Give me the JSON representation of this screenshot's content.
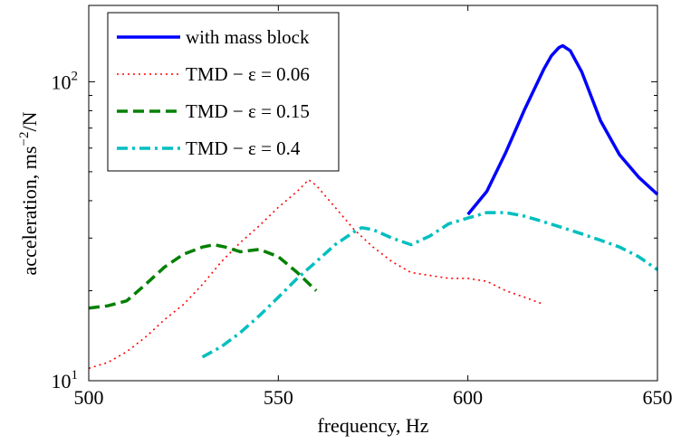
{
  "chart_data": {
    "type": "line",
    "xlabel": "frequency, Hz",
    "ylabel_main": "acceleration, ms",
    "ylabel_sup": "−2",
    "ylabel_tail": "/N",
    "xlim": [
      500,
      650
    ],
    "ylim": [
      10,
      180
    ],
    "yscale": "log",
    "grid": false,
    "legend_position": "top-left",
    "x_ticks": [
      {
        "value": 500,
        "label": "500"
      },
      {
        "value": 550,
        "label": "550"
      },
      {
        "value": 600,
        "label": "600"
      },
      {
        "value": 650,
        "label": "650"
      }
    ],
    "y_ticks": [
      {
        "value": 10,
        "base": "10",
        "exp": "1"
      },
      {
        "value": 100,
        "base": "10",
        "exp": "2"
      }
    ],
    "series": [
      {
        "name": "with mass block",
        "color": "#0000ff",
        "style": "solid",
        "x": [
          600,
          605,
          610,
          615,
          620,
          622,
          624,
          625,
          627,
          630,
          635,
          640,
          645,
          650
        ],
        "y": [
          36,
          43,
          58,
          81,
          110,
          122,
          130,
          132,
          127,
          108,
          74,
          57,
          48,
          42
        ]
      },
      {
        "name": "TMD − ε = 0.06",
        "color": "#ff0000",
        "style": "dotted",
        "x": [
          500,
          505,
          510,
          515,
          520,
          525,
          530,
          535,
          540,
          545,
          550,
          555,
          558,
          560,
          565,
          570,
          575,
          580,
          585,
          590,
          595,
          600,
          605,
          610,
          615,
          620
        ],
        "y": [
          11,
          11.5,
          12.5,
          14,
          16,
          18,
          21,
          25,
          29,
          33,
          38,
          43,
          47,
          45,
          38,
          32,
          28,
          25,
          23,
          22.5,
          22,
          22,
          21.5,
          20,
          19,
          18
        ]
      },
      {
        "name": "TMD − ε = 0.15",
        "color": "#008000",
        "style": "dashed",
        "x": [
          500,
          505,
          510,
          515,
          520,
          525,
          530,
          533,
          536,
          540,
          545,
          550,
          555,
          560
        ],
        "y": [
          17.5,
          17.8,
          18.5,
          21,
          24,
          26.5,
          28,
          28.5,
          28,
          27,
          27.5,
          26,
          23,
          20
        ]
      },
      {
        "name": "TMD − ε = 0.4",
        "color": "#00bfbf",
        "style": "dashdot",
        "x": [
          530,
          535,
          540,
          545,
          550,
          555,
          560,
          565,
          570,
          572,
          575,
          580,
          585,
          590,
          595,
          600,
          605,
          610,
          615,
          620,
          625,
          630,
          635,
          640,
          645,
          650
        ],
        "y": [
          12,
          13,
          14.5,
          16.5,
          19,
          22,
          25,
          28.5,
          31.5,
          32.5,
          32,
          30,
          28.5,
          30.5,
          33.5,
          35,
          36.5,
          36.5,
          35.5,
          34,
          32.5,
          31,
          29.5,
          28,
          26,
          23.5
        ]
      }
    ]
  }
}
